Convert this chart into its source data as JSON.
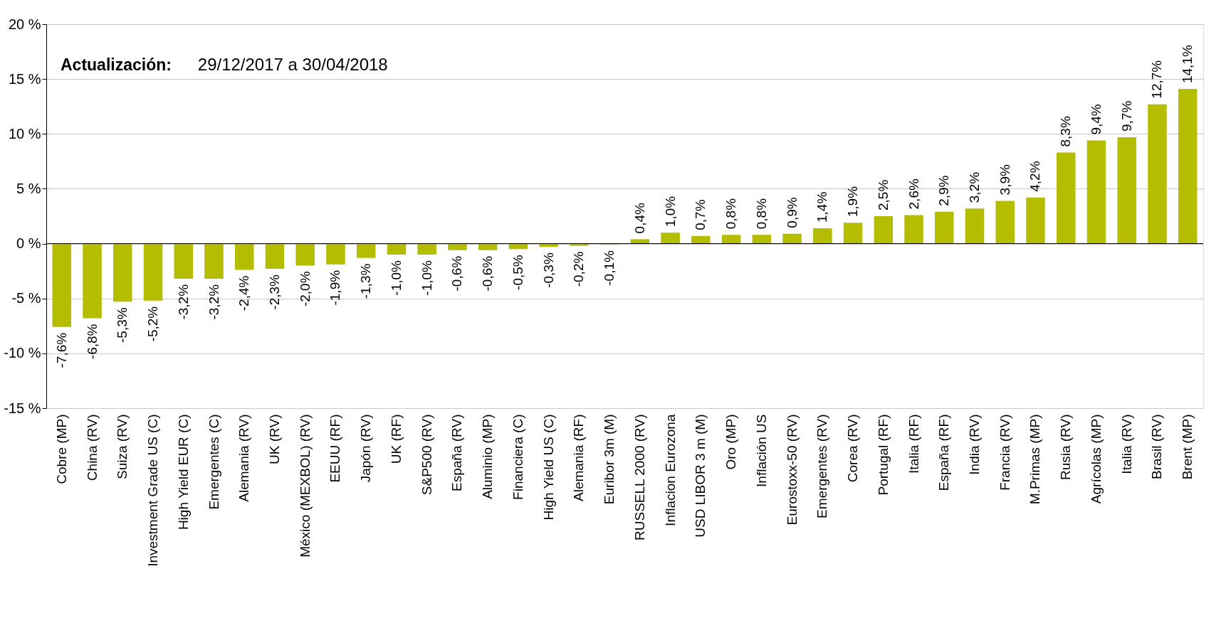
{
  "chart_data": {
    "type": "bar",
    "categories": [
      "Cobre (MP)",
      "China (RV)",
      "Suiza (RV)",
      "Investment Grade US (C)",
      "High Yield EUR (C)",
      "Emergentes (C)",
      "Alemania (RV)",
      "UK (RV)",
      "México (MEXBOL) (RV)",
      "EEUU (RF)",
      "Japón (RV)",
      "UK (RF)",
      "S&P500 (RV)",
      "España (RV)",
      "Aluminio (MP)",
      "Financiera (C)",
      "High Yield US (C)",
      "Alemania (RF)",
      "Euribor 3m (M)",
      "RUSSELL 2000 (RV)",
      "Inflacion Eurozona",
      "USD LIBOR 3 m (M)",
      "Oro (MP)",
      "Inflación US",
      "Eurostoxx-50 (RV)",
      "Emergentes (RV)",
      "Corea (RV)",
      "Portugal (RF)",
      "Italia (RF)",
      "España (RF)",
      "India (RV)",
      "Francia (RV)",
      "M.Primas (MP)",
      "Rusia (RV)",
      "Agrícolas (MP)",
      "Italia (RV)",
      "Brasil (RV)",
      "Brent (MP)"
    ],
    "values": [
      -7.6,
      -6.8,
      -5.3,
      -5.2,
      -3.2,
      -3.2,
      -2.4,
      -2.3,
      -2.0,
      -1.9,
      -1.3,
      -1.0,
      -1.0,
      -0.6,
      -0.6,
      -0.5,
      -0.3,
      -0.2,
      -0.1,
      0.4,
      1.0,
      0.7,
      0.8,
      0.8,
      0.9,
      1.4,
      1.9,
      2.5,
      2.6,
      2.9,
      3.2,
      3.9,
      4.2,
      8.3,
      9.4,
      9.7,
      12.7,
      14.1
    ],
    "value_labels": [
      "-7,6%",
      "-6,8%",
      "-5,3%",
      "-5,2%",
      "-3,2%",
      "-3,2%",
      "-2,4%",
      "-2,3%",
      "-2,0%",
      "-1,9%",
      "-1,3%",
      "-1,0%",
      "-1,0%",
      "-0,6%",
      "-0,6%",
      "-0,5%",
      "-0,3%",
      "-0,2%",
      "-0,1%",
      "0,4%",
      "1,0%",
      "0,7%",
      "0,8%",
      "0,8%",
      "0,9%",
      "1,4%",
      "1,9%",
      "2,5%",
      "2,6%",
      "2,9%",
      "3,2%",
      "3,9%",
      "4,2%",
      "8,3%",
      "9,4%",
      "9,7%",
      "12,7%",
      "14,1%"
    ],
    "color": "#b5bd00",
    "ylim": [
      -15,
      20
    ],
    "yticks": [
      {
        "value": -15,
        "label": "-15 %"
      },
      {
        "value": -10,
        "label": "-10 %"
      },
      {
        "value": -5,
        "label": "-5 %"
      },
      {
        "value": 0,
        "label": "0 %"
      },
      {
        "value": 5,
        "label": "5 %"
      },
      {
        "value": 10,
        "label": "10 %"
      },
      {
        "value": 15,
        "label": "15 %"
      },
      {
        "value": 20,
        "label": "20 %"
      }
    ],
    "grid": "y",
    "annotations": [
      "Actualización:",
      "29/12/2017 a 30/04/2018"
    ]
  }
}
